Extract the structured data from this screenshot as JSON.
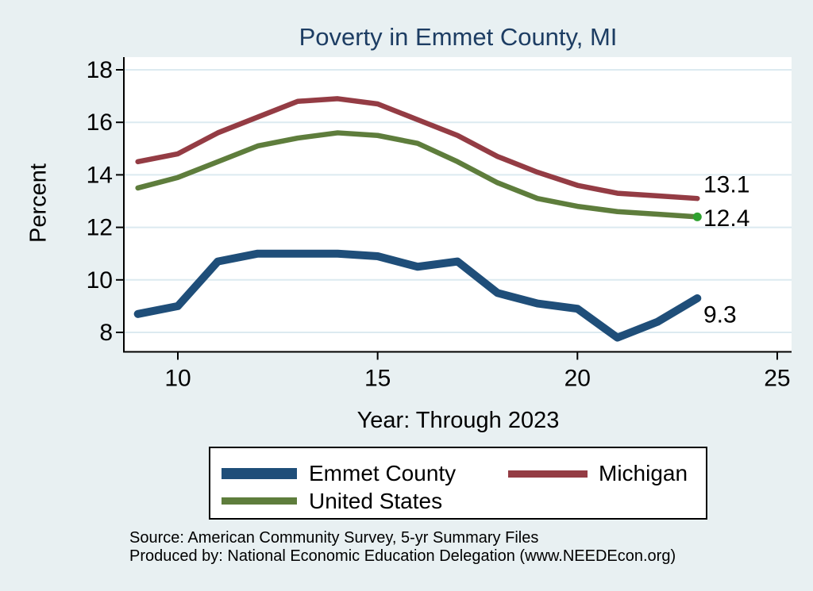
{
  "chart_data": {
    "type": "line",
    "title": "Poverty in Emmet County, MI",
    "title_color": "#1d3d63",
    "background_color": "#e8f0f2",
    "plot_background_color": "#ffffff",
    "gridline_color": "#dceaf0",
    "xlabel": "Year: Through 2023",
    "ylabel": "Percent",
    "x": [
      9,
      10,
      11,
      12,
      13,
      14,
      15,
      16,
      17,
      18,
      19,
      20,
      21,
      22,
      23
    ],
    "x_ticks": [
      10,
      15,
      20,
      25
    ],
    "y_ticks": [
      8,
      10,
      12,
      14,
      16,
      18
    ],
    "xlim": [
      8.7,
      25.4
    ],
    "ylim": [
      7.2,
      18.5
    ],
    "grid": "horizontal",
    "legend_position": "bottom",
    "series": [
      {
        "name": "Emmet County",
        "color": "#1f4e79",
        "values": [
          8.7,
          9.0,
          10.7,
          11.0,
          11.0,
          11.0,
          10.9,
          10.5,
          10.7,
          9.5,
          9.1,
          8.9,
          7.8,
          8.4,
          9.3
        ],
        "end_label": "9.3"
      },
      {
        "name": "Michigan",
        "color": "#943c44",
        "values": [
          14.5,
          14.8,
          15.6,
          16.2,
          16.8,
          16.9,
          16.7,
          16.1,
          15.5,
          14.7,
          14.1,
          13.6,
          13.3,
          13.2,
          13.1
        ],
        "end_label": "13.1"
      },
      {
        "name": "United States",
        "color": "#5e7d3c",
        "values": [
          13.5,
          13.9,
          14.5,
          15.1,
          15.4,
          15.6,
          15.5,
          15.2,
          14.5,
          13.7,
          13.1,
          12.8,
          12.6,
          12.5,
          12.4
        ],
        "end_label": "12.4",
        "end_dot_color": "#2fa12f"
      }
    ]
  },
  "legend": {
    "items": [
      "Emmet County",
      "Michigan",
      "United States"
    ]
  },
  "footer": {
    "source_line": "Source: American Community Survey, 5-yr Summary Files",
    "produced_line": "Produced by: National Economic Education Delegation (www.NEEDEcon.org)"
  }
}
